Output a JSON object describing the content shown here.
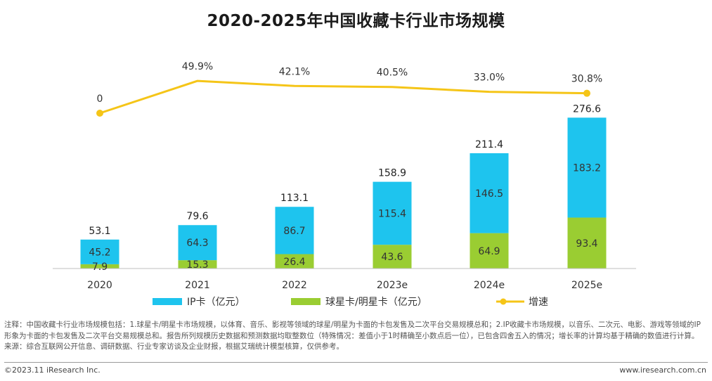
{
  "title": "2020-2025年中国收藏卡行业市场规模",
  "chart_data": {
    "type": "bar",
    "stacked": true,
    "categories": [
      "2020",
      "2021",
      "2022",
      "2023e",
      "2024e",
      "2025e"
    ],
    "series": [
      {
        "name": "IP卡（亿元）",
        "type": "bar",
        "color": "#1EC4EE",
        "values": [
          45.2,
          64.3,
          86.7,
          115.4,
          146.5,
          183.2
        ]
      },
      {
        "name": "球星卡/明星卡（亿元）",
        "type": "bar",
        "color": "#9ACD32",
        "values": [
          7.9,
          15.3,
          26.4,
          43.6,
          64.9,
          93.4
        ]
      },
      {
        "name": "增速",
        "type": "line",
        "color": "#F5C518",
        "values": [
          0,
          49.9,
          42.1,
          40.5,
          33.0,
          30.8
        ]
      }
    ],
    "totals": [
      53.1,
      79.6,
      113.1,
      158.9,
      211.4,
      276.6
    ],
    "bar_labels": {
      "ip": [
        "45.2",
        "64.3",
        "86.7",
        "115.4",
        "146.5",
        "183.2"
      ],
      "star": [
        "7.9",
        "15.3",
        "26.4",
        "43.6",
        "64.9",
        "93.4"
      ],
      "totals": [
        "53.1",
        "79.6",
        "113.1",
        "158.9",
        "211.4",
        "276.6"
      ]
    },
    "growth_labels": [
      "0",
      "49.9%",
      "42.1%",
      "40.5%",
      "33.0%",
      "30.8%"
    ],
    "legend_position": "bottom",
    "grid": false
  },
  "legend": {
    "ip": "IP卡（亿元）",
    "star": "球星卡/明星卡（亿元）",
    "growth": "增速"
  },
  "notes": {
    "line1": "注释：中国收藏卡行业市场规模包括：1.球星卡/明星卡市场规模，以体育、音乐、影视等领域的球星/明星为卡面的卡包发售及二次平台交易规模总和；2.IP收藏卡市场规模，以音乐、二次元、电影、游戏等领域的IP形象为卡面的卡包发售及二次平台交易规模总和。报告所列规模历史数据和预测数据均取整数位（特殊情况：差值小于1时精确至小数点后一位），已包含四舍五入的情况；增长率的计算均基于精确的数值进行计算。",
    "source": "来源：综合互联网公开信息、调研数据、行业专家访谈及企业财报，根据艾瑞统计模型核算，仅供参考。"
  },
  "footer": {
    "copyright": "©2023.11 iResearch Inc.",
    "website": "www.iresearch.com.cn"
  }
}
